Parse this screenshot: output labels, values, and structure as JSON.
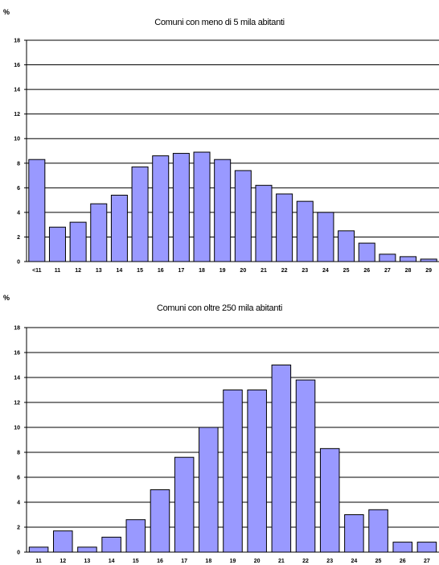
{
  "colors": {
    "bar_fill": "#9999ff",
    "bar_stroke": "#000000",
    "grid": "#000000"
  },
  "chart_data": [
    {
      "type": "bar",
      "title": "Comuni con meno di 5 mila abitanti",
      "ylabel": "%",
      "xlabel": "",
      "ylim": [
        0,
        18
      ],
      "yticks": [
        0,
        2,
        4,
        6,
        8,
        10,
        12,
        14,
        16,
        18
      ],
      "grid": true,
      "legend": "none",
      "categories": [
        "<11",
        "11",
        "12",
        "13",
        "14",
        "15",
        "16",
        "17",
        "18",
        "19",
        "20",
        "21",
        "22",
        "23",
        "24",
        "25",
        "26",
        "27",
        "28",
        "29"
      ],
      "values": [
        8.3,
        2.8,
        3.2,
        4.7,
        5.4,
        7.7,
        8.6,
        8.8,
        8.9,
        8.3,
        7.4,
        6.2,
        5.5,
        4.9,
        4.0,
        2.5,
        1.5,
        0.6,
        0.4,
        0.2
      ]
    },
    {
      "type": "bar",
      "title": "Comuni con oltre 250 mila abitanti",
      "ylabel": "%",
      "xlabel": "",
      "ylim": [
        0,
        18
      ],
      "yticks": [
        0,
        2,
        4,
        6,
        8,
        10,
        12,
        14,
        16,
        18
      ],
      "grid": true,
      "legend": "none",
      "categories": [
        "11",
        "12",
        "13",
        "14",
        "15",
        "16",
        "17",
        "18",
        "19",
        "20",
        "21",
        "22",
        "23",
        "24",
        "25",
        "26",
        "27"
      ],
      "values": [
        0.4,
        1.7,
        0.4,
        1.2,
        2.6,
        5.0,
        7.6,
        10.0,
        13.0,
        13.0,
        15.0,
        13.8,
        8.3,
        3.0,
        3.4,
        0.8,
        0.8
      ]
    }
  ]
}
